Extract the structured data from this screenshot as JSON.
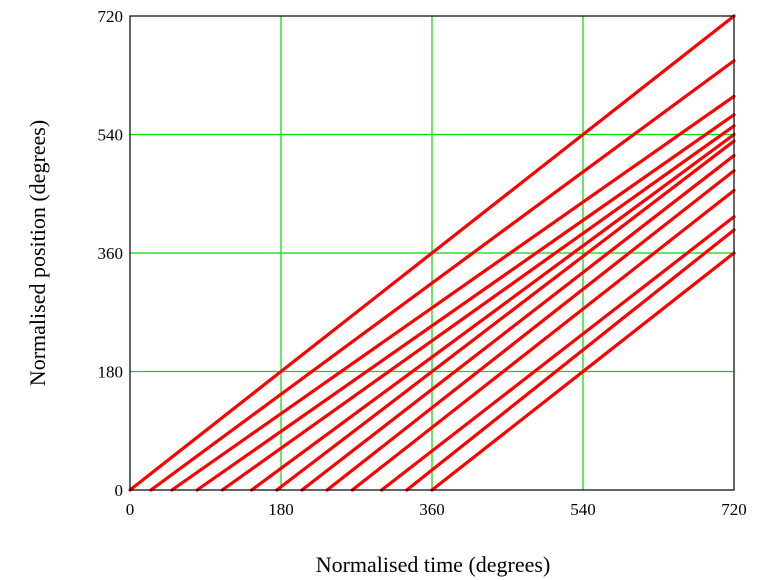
{
  "chart_data": {
    "type": "line",
    "xlabel": "Normalised time (degrees)",
    "ylabel": "Normalised position (degrees)",
    "xlim": [
      0,
      720
    ],
    "ylim": [
      0,
      720
    ],
    "xticks": [
      "0",
      "180",
      "360",
      "540",
      "720"
    ],
    "yticks": [
      "0",
      "180",
      "360",
      "540",
      "720"
    ],
    "grid": true,
    "colors": {
      "series": "#ff0000",
      "grid": "#00dd00",
      "frame": "#000000"
    },
    "series": [
      {
        "points": [
          [
            0,
            0
          ],
          [
            720,
            720
          ]
        ]
      },
      {
        "points": [
          [
            25,
            0
          ],
          [
            720,
            652
          ]
        ]
      },
      {
        "points": [
          [
            50,
            0
          ],
          [
            720,
            598
          ]
        ]
      },
      {
        "points": [
          [
            80,
            0
          ],
          [
            720,
            570
          ]
        ]
      },
      {
        "points": [
          [
            110,
            0
          ],
          [
            720,
            553
          ]
        ]
      },
      {
        "points": [
          [
            145,
            0
          ],
          [
            720,
            540
          ]
        ]
      },
      {
        "points": [
          [
            175,
            0
          ],
          [
            720,
            530
          ]
        ]
      },
      {
        "points": [
          [
            205,
            0
          ],
          [
            720,
            508
          ]
        ]
      },
      {
        "points": [
          [
            235,
            0
          ],
          [
            720,
            485
          ]
        ]
      },
      {
        "points": [
          [
            265,
            0
          ],
          [
            720,
            455
          ]
        ]
      },
      {
        "points": [
          [
            300,
            0
          ],
          [
            720,
            415
          ]
        ]
      },
      {
        "points": [
          [
            330,
            0
          ],
          [
            720,
            395
          ]
        ]
      },
      {
        "points": [
          [
            360,
            0
          ],
          [
            720,
            360
          ]
        ]
      }
    ]
  }
}
